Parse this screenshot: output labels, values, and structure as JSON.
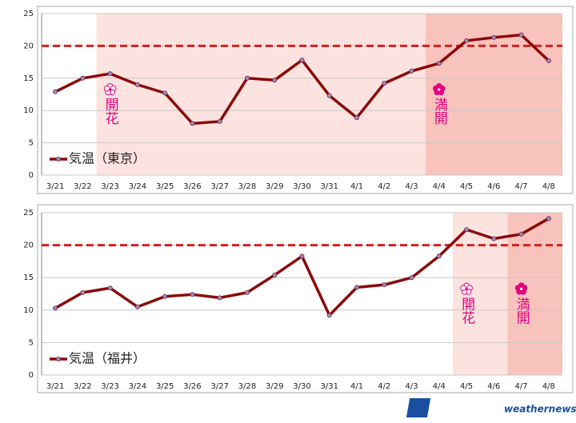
{
  "chart_data": [
    {
      "type": "line",
      "categories": [
        "3/21",
        "3/22",
        "3/23",
        "3/24",
        "3/25",
        "3/26",
        "3/27",
        "3/28",
        "3/29",
        "3/30",
        "3/31",
        "4/1",
        "4/2",
        "4/3",
        "4/4",
        "4/5",
        "4/6",
        "4/7",
        "4/8"
      ],
      "series": [
        {
          "name": "気温（東京）",
          "color": "#8b0a0a",
          "values": [
            12.9,
            15.0,
            15.7,
            14.0,
            12.7,
            8.0,
            8.3,
            15.0,
            14.7,
            17.8,
            12.3,
            8.9,
            14.2,
            16.1,
            17.3,
            20.8,
            21.3,
            21.7,
            17.7
          ]
        }
      ],
      "ylim": [
        0,
        25
      ],
      "yticks": [
        0,
        5,
        10,
        15,
        20,
        25
      ],
      "grid": true,
      "legend": "lower left",
      "reference_line": {
        "value": 20,
        "color": "#d42020"
      },
      "shades": [
        {
          "from": "3/23",
          "to": "4/3",
          "color": "#fde3df"
        },
        {
          "from": "4/4",
          "to": "4/8",
          "color": "#f9c3bd"
        }
      ],
      "annotations": [
        {
          "text": "開花",
          "at": "3/23",
          "bloom": "open"
        },
        {
          "text": "満開",
          "at": "4/4",
          "bloom": "full"
        }
      ]
    },
    {
      "type": "line",
      "categories": [
        "3/21",
        "3/22",
        "3/23",
        "3/24",
        "3/25",
        "3/26",
        "3/27",
        "3/28",
        "3/29",
        "3/30",
        "3/31",
        "4/1",
        "4/2",
        "4/3",
        "4/4",
        "4/5",
        "4/6",
        "4/7",
        "4/8"
      ],
      "series": [
        {
          "name": "気温（福井）",
          "color": "#8b0a0a",
          "values": [
            10.3,
            12.7,
            13.4,
            10.5,
            12.1,
            12.4,
            11.9,
            12.7,
            15.4,
            18.3,
            9.2,
            13.5,
            13.9,
            15.0,
            18.3,
            22.4,
            21.0,
            21.7,
            24.1
          ]
        }
      ],
      "ylim": [
        0,
        25
      ],
      "yticks": [
        0,
        5,
        10,
        15,
        20,
        25
      ],
      "grid": true,
      "legend": "lower left",
      "reference_line": {
        "value": 20,
        "color": "#d42020"
      },
      "shades": [
        {
          "from": "4/5",
          "to": "4/6",
          "color": "#fde3df"
        },
        {
          "from": "4/7",
          "to": "4/8",
          "color": "#f9c3bd"
        }
      ],
      "annotations": [
        {
          "text": "開花",
          "at": "4/5",
          "bloom": "open"
        },
        {
          "text": "満開",
          "at": "4/7",
          "bloom": "full"
        }
      ]
    }
  ],
  "logo": {
    "mark": "WN",
    "text": "weathernews"
  }
}
